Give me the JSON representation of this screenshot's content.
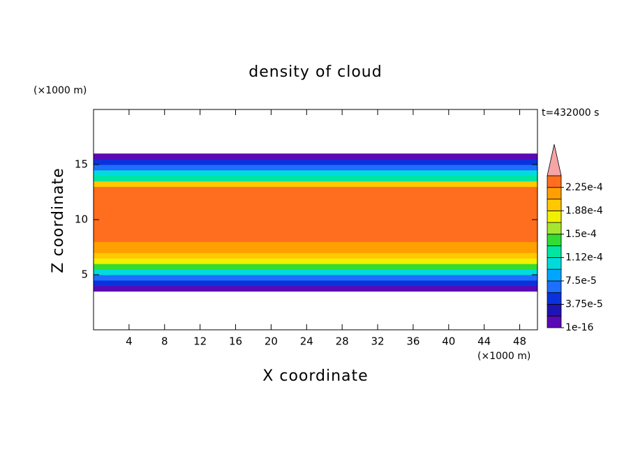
{
  "chart_data": {
    "type": "contour",
    "title": "density of cloud",
    "xlabel": "X coordinate",
    "ylabel": "Z coordinate",
    "xunit": "(×1000 m)",
    "yunit": "(×1000 m)",
    "time_label": "t=432000 s",
    "xlim": [
      0,
      50
    ],
    "ylim": [
      0,
      20
    ],
    "xticks": [
      4,
      8,
      12,
      16,
      20,
      24,
      28,
      32,
      36,
      40,
      44,
      48
    ],
    "yticks": [
      5,
      10,
      15
    ],
    "z": [
      3.75,
      4.25,
      4.75,
      5.25,
      5.75,
      6.25,
      6.75,
      7.25,
      7.75,
      8.25,
      8.75,
      9.25,
      9.75,
      10.25,
      10.75,
      11.25,
      11.75,
      12.25,
      12.75,
      13.25,
      13.75,
      14.25,
      14.75,
      15.25,
      15.75
    ],
    "values": [
      1e-05,
      4e-05,
      7e-05,
      0.000105,
      0.000145,
      0.000175,
      0.000195,
      0.00021,
      0.00022,
      0.00023,
      0.00023,
      0.00023,
      0.00023,
      0.00023,
      0.00023,
      0.00023,
      0.00023,
      0.00023,
      0.00023,
      0.00019,
      0.00013,
      0.0001,
      7e-05,
      4e-05,
      1e-05
    ],
    "colorbar": {
      "levels": [
        1e-16,
        1.875e-05,
        3.75e-05,
        5.625e-05,
        7.5e-05,
        9.375e-05,
        0.0001125,
        0.00013125,
        0.00015,
        0.00016875,
        0.0001875,
        0.00020625,
        0.000225,
        0.00024375
      ],
      "colors": [
        "#5a0ab4",
        "#1e14b4",
        "#0a32dc",
        "#1e6eff",
        "#00a5ff",
        "#00dcdc",
        "#00e6a0",
        "#32dc32",
        "#a5e632",
        "#f0f000",
        "#ffc800",
        "#ffa000",
        "#ff6e1e"
      ],
      "extend_color": "#f5a5a5",
      "ticks": [
        {
          "value": 1e-16,
          "label": "1e-16"
        },
        {
          "value": 3.75e-05,
          "label": "3.75e-5"
        },
        {
          "value": 7.5e-05,
          "label": "7.5e-5"
        },
        {
          "value": 0.0001125,
          "label": "1.12e-4"
        },
        {
          "value": 0.00015,
          "label": "1.5e-4"
        },
        {
          "value": 0.0001875,
          "label": "1.88e-4"
        },
        {
          "value": 0.000225,
          "label": "2.25e-4"
        }
      ]
    }
  }
}
